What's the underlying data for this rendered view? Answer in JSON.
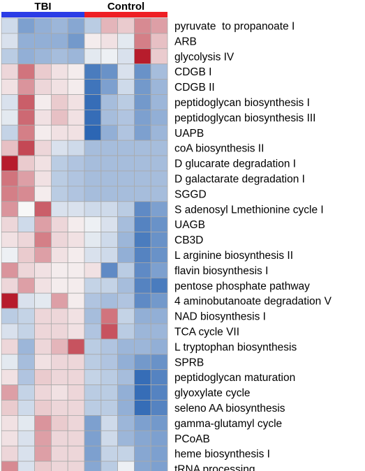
{
  "chart_data": {
    "type": "heatmap",
    "title": "",
    "groups": [
      {
        "name": "TBI",
        "columns": 5,
        "color": "#2b3ce6"
      },
      {
        "name": "Control",
        "columns": 5,
        "color": "#ee1f24"
      }
    ],
    "color_scale": {
      "low": "#2c66b4",
      "mid": "#f7f7f7",
      "high": "#b71c2c",
      "range": [
        -2,
        2
      ]
    },
    "rows": [
      "pyruvate  to propanoate I",
      "ARB",
      "glycolysis IV",
      "CDGB I",
      "CDGB II",
      "peptidoglycan biosynthesis I",
      "peptidoglycan biosynthesis III",
      "UAPB",
      "coA biosynthesis II",
      "D glucarate degradation I",
      "D galactarate degradation I",
      "SGGD",
      "S adenosyl Lmethionine cycle I",
      "UAGB",
      "CB3D",
      "L arginine biosynthesis II",
      "flavin biosynthesis I",
      "pentose phosphate pathway",
      "4 aminobutanoate degradation V",
      "NAD biosynthesis I",
      "TCA cycle VII",
      "L tryptophan biosynthesis",
      "SPRB",
      "peptidoglycan maturation",
      "glyoxylate cycle",
      "seleno AA biosynthesis",
      "gamma-glutamyl cycle",
      "PCoAB",
      "heme biosynthesis I",
      "tRNA processing"
    ],
    "values": [
      [
        -0.4,
        -1.2,
        -1.0,
        -0.9,
        -1.1,
        -0.6,
        0.6,
        0.4,
        1.0,
        0.8
      ],
      [
        -0.3,
        -1.0,
        -1.0,
        -1.0,
        -1.3,
        0.1,
        0.2,
        -0.2,
        1.1,
        0.5
      ],
      [
        -0.6,
        -1.0,
        -0.9,
        -0.8,
        -0.9,
        -0.2,
        -0.1,
        -0.3,
        2.0,
        0.4
      ],
      [
        0.3,
        1.2,
        0.4,
        0.2,
        0.1,
        -1.7,
        -1.4,
        -0.3,
        -1.4,
        -0.8
      ],
      [
        0.2,
        0.9,
        0.3,
        0.2,
        0.1,
        -1.8,
        -1.2,
        -0.4,
        -1.3,
        -0.9
      ],
      [
        -0.3,
        1.4,
        0.1,
        0.4,
        0.2,
        -1.9,
        -0.8,
        -0.6,
        -1.3,
        -0.9
      ],
      [
        -0.2,
        1.3,
        0.2,
        0.5,
        0.2,
        -1.9,
        -0.8,
        -0.7,
        -1.2,
        -1.0
      ],
      [
        -0.5,
        1.1,
        0.1,
        0.2,
        0.2,
        -2.0,
        -1.0,
        -0.7,
        -1.2,
        -0.9
      ],
      [
        0.5,
        1.6,
        0.3,
        -0.3,
        -0.4,
        -0.8,
        -0.8,
        -0.8,
        -0.8,
        -0.8
      ],
      [
        2.0,
        0.4,
        0.2,
        -0.6,
        -0.7,
        -0.8,
        -0.8,
        -0.8,
        -0.8,
        -0.8
      ],
      [
        1.2,
        0.8,
        0.2,
        -0.6,
        -0.7,
        -0.8,
        -0.8,
        -0.8,
        -0.8,
        -0.8
      ],
      [
        1.1,
        1.0,
        0.1,
        -0.6,
        -0.7,
        -0.8,
        -0.8,
        -0.8,
        -0.8,
        -0.8
      ],
      [
        0.9,
        0.0,
        1.4,
        -0.3,
        -0.3,
        -0.4,
        -0.4,
        -0.6,
        -1.5,
        -1.2
      ],
      [
        0.3,
        -0.4,
        0.8,
        0.3,
        0.1,
        -0.1,
        -0.3,
        -0.8,
        -1.6,
        -1.4
      ],
      [
        0.2,
        0.3,
        1.1,
        0.3,
        0.2,
        -0.2,
        -0.4,
        -0.9,
        -1.7,
        -1.4
      ],
      [
        -0.1,
        0.4,
        0.8,
        0.2,
        0.1,
        -0.3,
        -0.4,
        -1.0,
        -1.6,
        -1.4
      ],
      [
        0.9,
        0.3,
        0.2,
        0.1,
        0.1,
        0.2,
        -1.5,
        -0.6,
        -1.5,
        -1.2
      ],
      [
        0.3,
        0.8,
        0.2,
        0.1,
        0.1,
        -0.5,
        -0.5,
        -0.8,
        -1.6,
        -1.7
      ],
      [
        2.0,
        -0.3,
        -0.2,
        0.8,
        0.1,
        -0.7,
        -0.8,
        -0.7,
        -1.5,
        -1.3
      ],
      [
        -0.6,
        -0.5,
        0.3,
        0.3,
        0.2,
        -0.8,
        1.2,
        -0.5,
        -1.0,
        -1.0
      ],
      [
        -0.3,
        -0.5,
        0.3,
        0.3,
        0.2,
        -0.7,
        1.5,
        -0.6,
        -0.9,
        -0.9
      ],
      [
        0.3,
        -0.9,
        0.3,
        0.6,
        1.5,
        -0.6,
        -0.7,
        -0.9,
        -0.9,
        -1.0
      ],
      [
        -0.2,
        -0.8,
        0.2,
        0.3,
        0.3,
        -0.6,
        -0.7,
        -1.0,
        -1.3,
        -1.4
      ],
      [
        0.2,
        -0.7,
        0.4,
        0.3,
        0.3,
        -0.5,
        -0.6,
        -0.8,
        -1.9,
        -1.6
      ],
      [
        0.8,
        -0.5,
        0.3,
        0.2,
        0.3,
        -0.6,
        -0.6,
        -1.0,
        -1.9,
        -1.6
      ],
      [
        0.4,
        -0.4,
        0.4,
        0.3,
        0.3,
        -0.6,
        -0.6,
        -1.0,
        -1.9,
        -1.6
      ],
      [
        0.2,
        -0.2,
        0.9,
        0.4,
        0.3,
        -1.2,
        -0.4,
        -0.9,
        -1.2,
        -1.3
      ],
      [
        0.2,
        -0.3,
        0.8,
        0.3,
        0.3,
        -1.2,
        -0.4,
        -0.9,
        -1.1,
        -1.2
      ],
      [
        0.3,
        -0.3,
        0.8,
        0.3,
        0.3,
        -1.2,
        -0.5,
        -0.5,
        -1.1,
        -1.2
      ],
      [
        1.0,
        -0.3,
        0.4,
        0.3,
        0.3,
        -1.1,
        -0.6,
        -0.1,
        -1.1,
        -1.2
      ]
    ]
  }
}
